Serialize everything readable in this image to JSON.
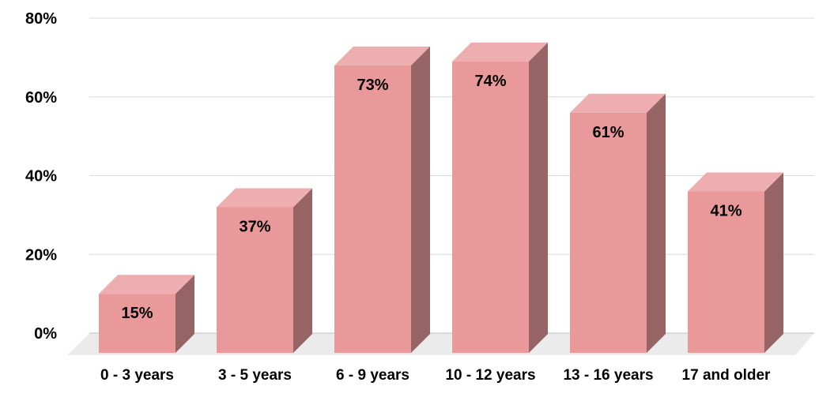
{
  "chart_data": {
    "type": "bar",
    "title": "",
    "xlabel": "",
    "ylabel": "",
    "categories": [
      "0 - 3 years",
      "3 - 5 years",
      "6 - 9 years",
      "10 - 12 years",
      "13 - 16 years",
      "17 and older"
    ],
    "values": [
      15,
      37,
      73,
      74,
      61,
      41
    ],
    "data_labels": [
      "15%",
      "37%",
      "73%",
      "74%",
      "61%",
      "41%"
    ],
    "ylim": [
      0,
      80
    ],
    "yticks": [
      0,
      20,
      40,
      60,
      80
    ],
    "ytick_labels": [
      "0%",
      "20%",
      "40%",
      "60%",
      "80%"
    ],
    "grid": true,
    "legend": "none",
    "style": "3d-columns",
    "colors": {
      "bar_front": "#e9999a",
      "bar_top": "#eeadae",
      "bar_side": "#966464",
      "floor": "#ebebeb",
      "grid": "#d9d9d9"
    }
  }
}
